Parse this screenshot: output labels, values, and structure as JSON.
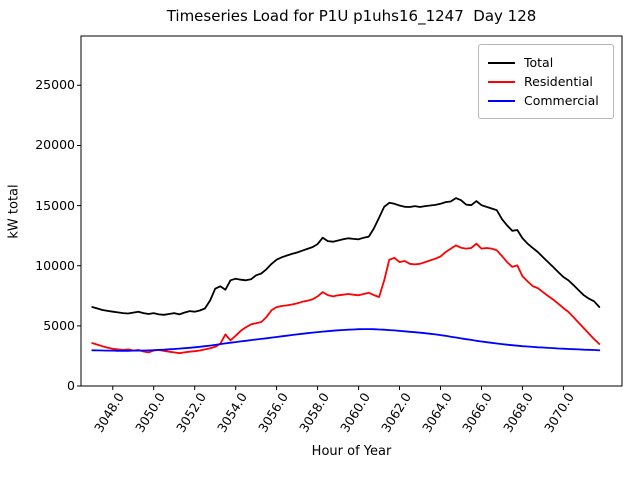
{
  "chart_data": {
    "type": "line",
    "title": "Timeseries Load for P1U p1uhs16_1247  Day 128",
    "xlabel": "Hour of Year",
    "ylabel": "kW total",
    "xlim": [
      3046.45,
      3072.86
    ],
    "ylim": [
      0,
      29100
    ],
    "grid": false,
    "legend_position": "upper right",
    "xticks": [
      3048,
      3050,
      3052,
      3054,
      3056,
      3058,
      3060,
      3062,
      3064,
      3066,
      3068,
      3070
    ],
    "xtick_labels": [
      "3048.0",
      "3050.0",
      "3052.0",
      "3054.0",
      "3056.0",
      "3058.0",
      "3060.0",
      "3062.0",
      "3064.0",
      "3066.0",
      "3068.0",
      "3070.0"
    ],
    "yticks": [
      0,
      5000,
      10000,
      15000,
      20000,
      25000
    ],
    "ytick_labels": [
      "0",
      "5000",
      "10000",
      "15000",
      "20000",
      "25000"
    ],
    "x_start": 3047.0,
    "x_step": 0.25,
    "series": [
      {
        "name": "Total",
        "color": "#000000",
        "values": [
          6570,
          6440,
          6320,
          6240,
          6180,
          6120,
          6060,
          6030,
          6100,
          6180,
          6060,
          5990,
          6060,
          5950,
          5920,
          5990,
          6060,
          5950,
          6100,
          6230,
          6180,
          6280,
          6440,
          7110,
          8090,
          8290,
          8010,
          8790,
          8920,
          8840,
          8790,
          8870,
          9200,
          9350,
          9700,
          10150,
          10500,
          10700,
          10850,
          10980,
          11100,
          11250,
          11400,
          11550,
          11800,
          12330,
          12050,
          12000,
          12100,
          12200,
          12280,
          12230,
          12200,
          12330,
          12420,
          13100,
          14000,
          14900,
          15230,
          15150,
          15010,
          14900,
          14880,
          14960,
          14880,
          14960,
          15010,
          15060,
          15150,
          15290,
          15340,
          15620,
          15450,
          15080,
          15030,
          15370,
          15030,
          14890,
          14760,
          14620,
          13870,
          13350,
          12900,
          12970,
          12300,
          11830,
          11480,
          11140,
          10720,
          10300,
          9890,
          9470,
          9060,
          8780,
          8370,
          7950,
          7540,
          7260,
          7040,
          6570
        ]
      },
      {
        "name": "Residential",
        "color": "#ff0000",
        "values": [
          3570,
          3440,
          3300,
          3180,
          3090,
          3040,
          2990,
          3040,
          2950,
          2990,
          2870,
          2790,
          2950,
          2990,
          2930,
          2850,
          2790,
          2730,
          2790,
          2850,
          2890,
          2950,
          3040,
          3140,
          3260,
          3510,
          4290,
          3800,
          4180,
          4590,
          4880,
          5120,
          5220,
          5320,
          5730,
          6290,
          6560,
          6650,
          6700,
          6780,
          6870,
          7000,
          7090,
          7200,
          7450,
          7810,
          7560,
          7450,
          7540,
          7590,
          7650,
          7590,
          7540,
          7650,
          7750,
          7560,
          7400,
          8780,
          10500,
          10660,
          10300,
          10390,
          10160,
          10110,
          10160,
          10300,
          10440,
          10580,
          10770,
          11130,
          11410,
          11690,
          11500,
          11420,
          11470,
          11830,
          11420,
          11470,
          11420,
          11280,
          10800,
          10300,
          9900,
          10030,
          9140,
          8700,
          8310,
          8140,
          7810,
          7480,
          7180,
          6840,
          6480,
          6150,
          5700,
          5250,
          4800,
          4350,
          3900,
          3490
        ]
      },
      {
        "name": "Commercial",
        "color": "#0000ff",
        "values": [
          2970,
          2960,
          2950,
          2940,
          2940,
          2930,
          2930,
          2930,
          2940,
          2940,
          2950,
          2960,
          2980,
          3000,
          3020,
          3050,
          3080,
          3110,
          3140,
          3180,
          3220,
          3260,
          3310,
          3360,
          3420,
          3480,
          3540,
          3600,
          3650,
          3710,
          3760,
          3820,
          3870,
          3920,
          3970,
          4020,
          4070,
          4130,
          4180,
          4240,
          4290,
          4340,
          4390,
          4440,
          4480,
          4520,
          4560,
          4600,
          4630,
          4660,
          4680,
          4700,
          4720,
          4730,
          4730,
          4720,
          4700,
          4680,
          4650,
          4620,
          4580,
          4550,
          4510,
          4470,
          4430,
          4390,
          4340,
          4290,
          4230,
          4170,
          4100,
          4030,
          3960,
          3890,
          3830,
          3760,
          3700,
          3640,
          3590,
          3530,
          3480,
          3430,
          3390,
          3350,
          3310,
          3280,
          3250,
          3220,
          3200,
          3170,
          3150,
          3120,
          3100,
          3080,
          3060,
          3040,
          3020,
          3010,
          2990,
          2970
        ]
      }
    ]
  }
}
